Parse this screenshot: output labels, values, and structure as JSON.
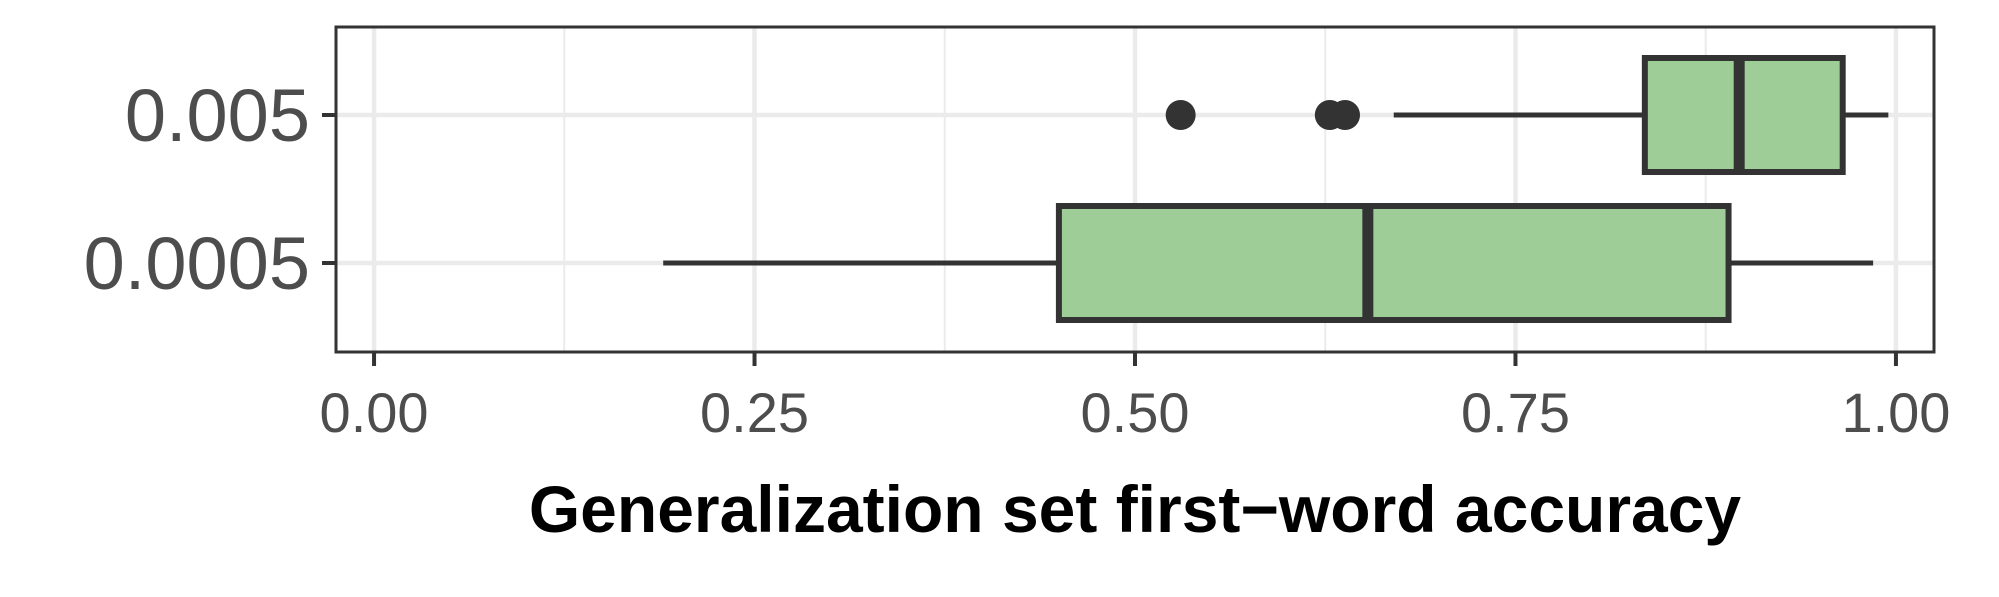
{
  "chart_data": {
    "type": "boxplot",
    "orientation": "horizontal",
    "title": "",
    "xlabel": "Generalization set first−word accuracy",
    "ylabel": "",
    "xlim": [
      -0.025,
      1.025
    ],
    "x_ticks": [
      0.0,
      0.25,
      0.5,
      0.75,
      1.0
    ],
    "x_tick_labels": [
      "0.00",
      "0.25",
      "0.50",
      "0.75",
      "1.00"
    ],
    "categories": [
      "0.005",
      "0.0005"
    ],
    "boxes": [
      {
        "category": "0.005",
        "whisker_low": 0.67,
        "q1": 0.835,
        "median": 0.897,
        "q3": 0.965,
        "whisker_high": 0.995,
        "outliers": [
          0.53,
          0.628,
          0.638
        ]
      },
      {
        "category": "0.0005",
        "whisker_low": 0.19,
        "q1": 0.45,
        "median": 0.653,
        "q3": 0.89,
        "whisker_high": 0.985,
        "outliers": []
      }
    ],
    "fill_color": "#9ecd97",
    "line_color": "#333333",
    "grid": true,
    "grid_color": "#ebebeb",
    "panel_border_color": "#333333",
    "legend": "none"
  }
}
